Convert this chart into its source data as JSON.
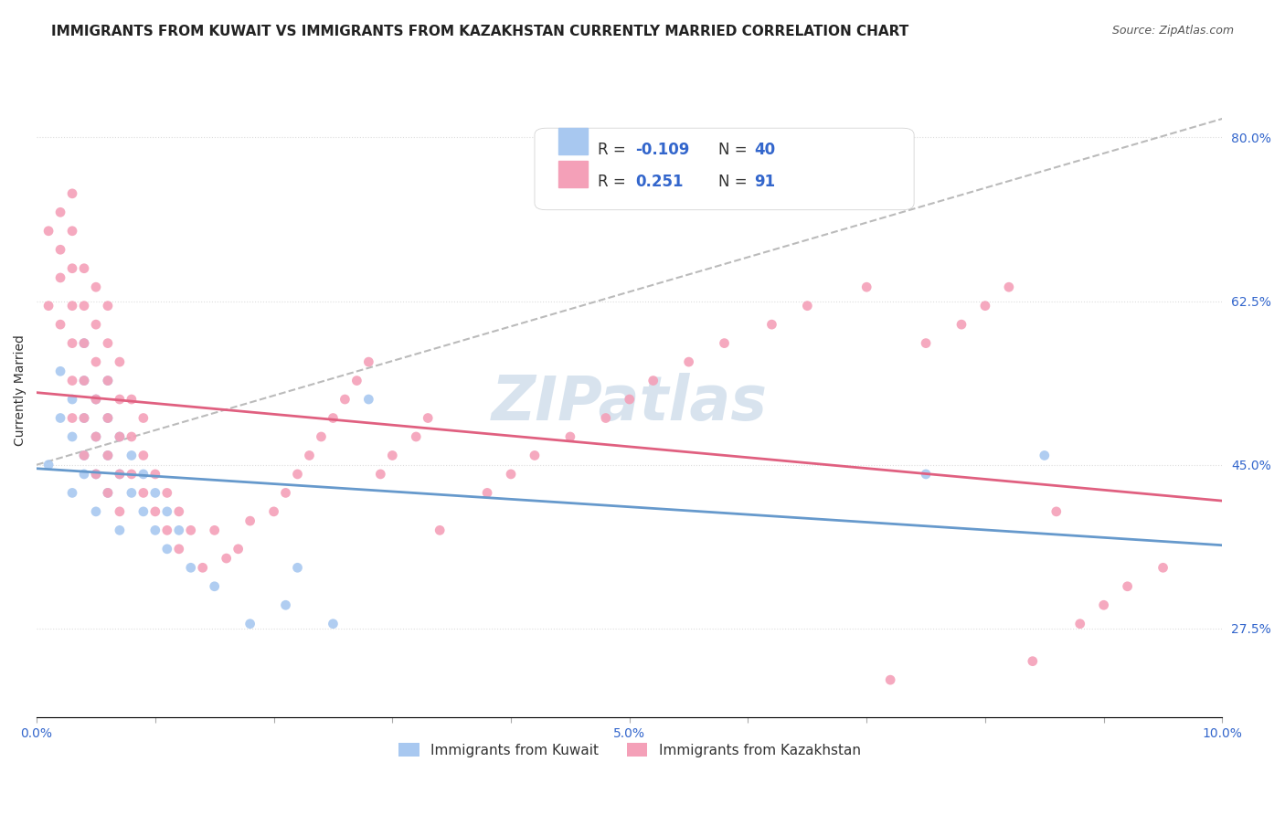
{
  "title": "IMMIGRANTS FROM KUWAIT VS IMMIGRANTS FROM KAZAKHSTAN CURRENTLY MARRIED CORRELATION CHART",
  "source_text": "Source: ZipAtlas.com",
  "xlabel": "",
  "ylabel": "Currently Married",
  "xlim": [
    0.0,
    0.1
  ],
  "ylim": [
    0.18,
    0.88
  ],
  "yticks": [
    0.275,
    0.45,
    0.625,
    0.8
  ],
  "ytick_labels": [
    "27.5%",
    "45.0%",
    "62.5%",
    "80.0%"
  ],
  "xticks": [
    0.0,
    0.01,
    0.02,
    0.03,
    0.04,
    0.05,
    0.06,
    0.07,
    0.08,
    0.09,
    0.1
  ],
  "xtick_labels": [
    "0.0%",
    "",
    "",
    "",
    "",
    "5.0%",
    "",
    "",
    "",
    "",
    "10.0%"
  ],
  "kuwait_color": "#a8c8f0",
  "kazakhstan_color": "#f4a0b8",
  "kuwait_line_color": "#6699cc",
  "kazakhstan_line_color": "#e06080",
  "trendline_dashed_color": "#bbbbbb",
  "R_kuwait": -0.109,
  "N_kuwait": 40,
  "R_kazakhstan": 0.251,
  "N_kazakhstan": 91,
  "legend_R_color": "#3366cc",
  "background_color": "#ffffff",
  "grid_color": "#dddddd",
  "kuwait_scatter_x": [
    0.001,
    0.002,
    0.002,
    0.003,
    0.003,
    0.003,
    0.004,
    0.004,
    0.004,
    0.004,
    0.004,
    0.005,
    0.005,
    0.005,
    0.005,
    0.006,
    0.006,
    0.006,
    0.006,
    0.007,
    0.007,
    0.007,
    0.008,
    0.008,
    0.009,
    0.009,
    0.01,
    0.01,
    0.011,
    0.011,
    0.012,
    0.013,
    0.015,
    0.018,
    0.021,
    0.022,
    0.025,
    0.028,
    0.075,
    0.085
  ],
  "kuwait_scatter_y": [
    0.45,
    0.5,
    0.55,
    0.42,
    0.48,
    0.52,
    0.44,
    0.46,
    0.5,
    0.54,
    0.58,
    0.4,
    0.44,
    0.48,
    0.52,
    0.42,
    0.46,
    0.5,
    0.54,
    0.38,
    0.44,
    0.48,
    0.42,
    0.46,
    0.4,
    0.44,
    0.38,
    0.42,
    0.36,
    0.4,
    0.38,
    0.34,
    0.32,
    0.28,
    0.3,
    0.34,
    0.28,
    0.52,
    0.44,
    0.46
  ],
  "kazakhstan_scatter_x": [
    0.001,
    0.001,
    0.002,
    0.002,
    0.002,
    0.002,
    0.003,
    0.003,
    0.003,
    0.003,
    0.003,
    0.003,
    0.003,
    0.004,
    0.004,
    0.004,
    0.004,
    0.004,
    0.004,
    0.005,
    0.005,
    0.005,
    0.005,
    0.005,
    0.005,
    0.006,
    0.006,
    0.006,
    0.006,
    0.006,
    0.006,
    0.007,
    0.007,
    0.007,
    0.007,
    0.007,
    0.008,
    0.008,
    0.008,
    0.009,
    0.009,
    0.009,
    0.01,
    0.01,
    0.011,
    0.011,
    0.012,
    0.012,
    0.013,
    0.014,
    0.015,
    0.016,
    0.017,
    0.018,
    0.02,
    0.021,
    0.022,
    0.023,
    0.024,
    0.025,
    0.026,
    0.027,
    0.028,
    0.029,
    0.03,
    0.032,
    0.033,
    0.034,
    0.038,
    0.04,
    0.042,
    0.045,
    0.048,
    0.05,
    0.052,
    0.055,
    0.058,
    0.062,
    0.065,
    0.07,
    0.072,
    0.075,
    0.078,
    0.08,
    0.082,
    0.084,
    0.086,
    0.088,
    0.09,
    0.092,
    0.095
  ],
  "kazakhstan_scatter_y": [
    0.7,
    0.62,
    0.65,
    0.6,
    0.68,
    0.72,
    0.5,
    0.54,
    0.58,
    0.62,
    0.66,
    0.7,
    0.74,
    0.46,
    0.5,
    0.54,
    0.58,
    0.62,
    0.66,
    0.44,
    0.48,
    0.52,
    0.56,
    0.6,
    0.64,
    0.42,
    0.46,
    0.5,
    0.54,
    0.58,
    0.62,
    0.4,
    0.44,
    0.48,
    0.52,
    0.56,
    0.44,
    0.48,
    0.52,
    0.42,
    0.46,
    0.5,
    0.4,
    0.44,
    0.38,
    0.42,
    0.36,
    0.4,
    0.38,
    0.34,
    0.38,
    0.35,
    0.36,
    0.39,
    0.4,
    0.42,
    0.44,
    0.46,
    0.48,
    0.5,
    0.52,
    0.54,
    0.56,
    0.44,
    0.46,
    0.48,
    0.5,
    0.38,
    0.42,
    0.44,
    0.46,
    0.48,
    0.5,
    0.52,
    0.54,
    0.56,
    0.58,
    0.6,
    0.62,
    0.64,
    0.22,
    0.58,
    0.6,
    0.62,
    0.64,
    0.24,
    0.4,
    0.28,
    0.3,
    0.32,
    0.34
  ],
  "title_fontsize": 11,
  "axis_label_fontsize": 10,
  "tick_fontsize": 10,
  "legend_fontsize": 12,
  "watermark_text": "ZIPatlas",
  "watermark_color": "#c8d8e8",
  "watermark_fontsize": 48
}
